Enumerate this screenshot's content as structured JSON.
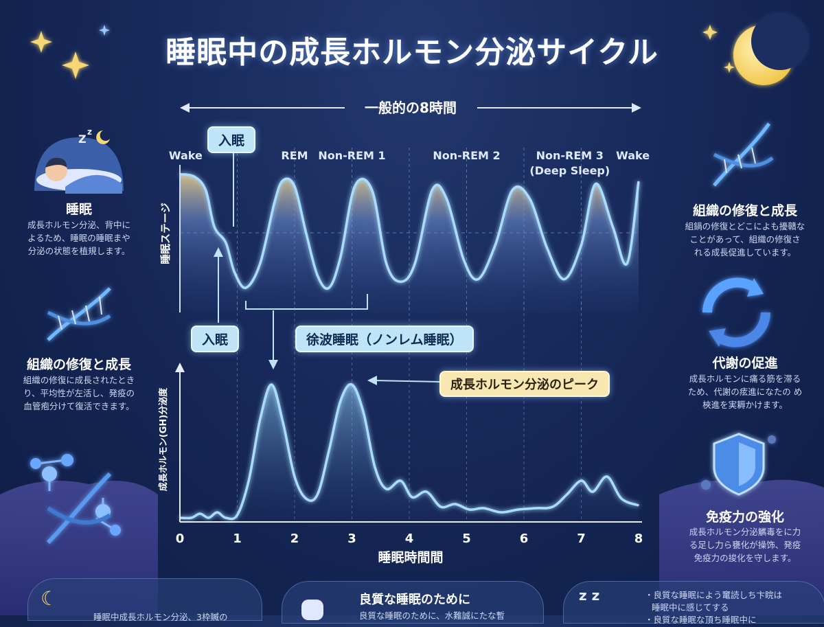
{
  "title": "睡眠中の成長ホルモン分泌サイクル",
  "duration_label": "一般的の8時間",
  "colors": {
    "background": "#17295a",
    "curve": "#a9ddff",
    "fill_top": "#f3d58c",
    "fill_bottom": "#3a5a9a",
    "callout": "#bfe3f7",
    "peak_callout": "#f8e7b0",
    "star": "#f7d774",
    "moon": "#f9d76b"
  },
  "left_panels": [
    {
      "icon": "sleeping-person-icon",
      "title": "睡眠",
      "text": "成長ホルモン分泌、背中に\nよるため、睡眠の睡眠まや\n分泌の状態を植規します。"
    },
    {
      "icon": "dna-icon",
      "title": "組織の修復と成長",
      "text": "組織の修復に成長されたとき\nり、平均性が左活し、発疫の\n血管疱分けて復活できます。"
    },
    {
      "icon": "molecule-icon",
      "title": "",
      "text": ""
    }
  ],
  "right_panels": [
    {
      "icon": "dna-icon",
      "title": "組織の修復と成長",
      "text": "組鍋の修復とどこによも擾贛な\nことがあって、組織の修復さ\nれる成長促進しています。"
    },
    {
      "icon": "cycle-arrows-icon",
      "title": "代謝の促進",
      "text": "成長ホルモンに痛る筋を滞る\nため、代謝の痃進になたの め\n梜進を実耨かけます。"
    },
    {
      "icon": "shield-icon",
      "title": "免疫力の強化",
      "text": "成長ホルモン分泌觽毒をに力\nる足し力ら甕化が操饰、発疫\n免疫力の捘化を守します。"
    }
  ],
  "bottom": {
    "left_text": "睡眠中成長ホルモン分泌、3枠贓の",
    "center_title": "良質な睡眠のために",
    "center_text": "良質な睡眠のために、水難誠にたな暫",
    "right_text": [
      "・良質な睡眠によう竃読しち卞睆は",
      "睡眠中に感じてする",
      "・良質な睡眠な頂ち睡眠中に"
    ]
  },
  "chart_data": [
    {
      "type": "line",
      "ylabel": "睡眠ステージ",
      "stage_labels": [
        {
          "label": "Wake",
          "x": 0.1
        },
        {
          "label": "REM",
          "x": 2.0
        },
        {
          "label": "Non-REM 1",
          "x": 3.0
        },
        {
          "label": "Non-REM 2",
          "x": 5.0
        },
        {
          "label": "Non-REM 3\n(Deep Sleep)",
          "x": 6.8
        },
        {
          "label": "Wake",
          "x": 7.9
        }
      ],
      "annotations": {
        "sleep_onset_top": "入眠",
        "sleep_onset_bottom": "入眠",
        "slow_wave": "徐波睡眠（ノンレム睡眠）"
      },
      "x": [
        0,
        0.25,
        0.45,
        0.6,
        0.8,
        0.95,
        1.15,
        1.4,
        1.65,
        1.8,
        2.0,
        2.2,
        2.4,
        2.6,
        2.8,
        3.05,
        3.35,
        3.6,
        3.85,
        4.1,
        4.4,
        4.65,
        4.95,
        5.2,
        5.5,
        5.8,
        6.1,
        6.4,
        6.7,
        7.0,
        7.25,
        7.55,
        7.8,
        8.0
      ],
      "y": [
        0.98,
        0.96,
        0.85,
        0.55,
        0.42,
        0.18,
        0.05,
        0.25,
        0.75,
        0.93,
        0.88,
        0.5,
        0.15,
        0.05,
        0.3,
        0.88,
        0.85,
        0.25,
        0.1,
        0.25,
        0.85,
        0.78,
        0.28,
        0.12,
        0.4,
        0.85,
        0.78,
        0.38,
        0.12,
        0.4,
        0.9,
        0.55,
        0.25,
        0.92
      ],
      "ylim": [
        0,
        1
      ],
      "xlim": [
        0,
        8
      ],
      "grid_x": [
        1,
        2,
        3,
        4,
        5,
        6,
        7
      ],
      "reference_line": 0.5
    },
    {
      "type": "area",
      "xlabel": "睡眠時間間",
      "ylabel": "成長ホルモン(GH)分泌度",
      "xticks": [
        0,
        1,
        2,
        3,
        4,
        5,
        6,
        7,
        8
      ],
      "peak_label": "成長ホルモン分泌のピーク",
      "x": [
        0,
        0.2,
        0.35,
        0.5,
        0.65,
        0.8,
        1.0,
        1.2,
        1.4,
        1.6,
        1.8,
        2.0,
        2.2,
        2.4,
        2.6,
        2.8,
        3.0,
        3.2,
        3.4,
        3.6,
        3.85,
        4.05,
        4.3,
        4.55,
        4.8,
        5.05,
        5.3,
        5.6,
        5.9,
        6.2,
        6.5,
        6.75,
        7.0,
        7.2,
        7.45,
        7.7,
        8.0
      ],
      "y": [
        0.03,
        0.03,
        0.06,
        0.03,
        0.07,
        0.03,
        0.05,
        0.3,
        0.75,
        1.0,
        0.72,
        0.33,
        0.17,
        0.2,
        0.52,
        0.88,
        1.0,
        0.8,
        0.4,
        0.24,
        0.3,
        0.18,
        0.22,
        0.11,
        0.13,
        0.09,
        0.1,
        0.07,
        0.09,
        0.1,
        0.11,
        0.2,
        0.3,
        0.22,
        0.33,
        0.17,
        0.12
      ],
      "ylim": [
        0,
        1.1
      ],
      "xlim": [
        0,
        8
      ]
    }
  ]
}
